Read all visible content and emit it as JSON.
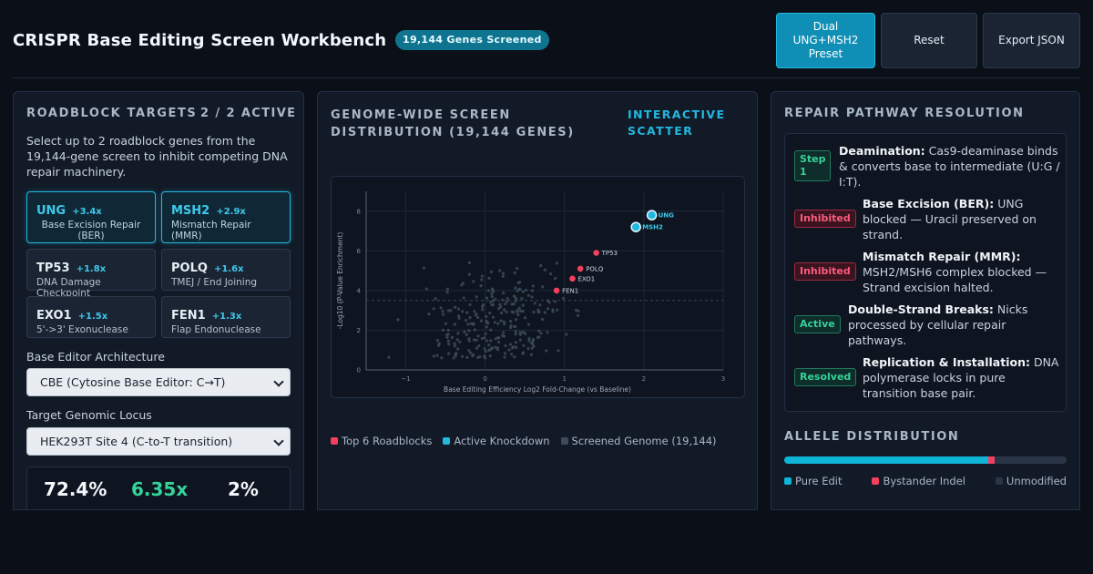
{
  "header": {
    "title": "CRISPR Base Editing Screen Workbench",
    "badge": "19,144 Genes Screened",
    "buttons": {
      "preset": "Dual UNG+MSH2 Preset",
      "reset": "Reset",
      "export": "Export JSON"
    }
  },
  "roadblocks": {
    "title": "Roadblock Targets",
    "active_count": "2 / 2 ACTIVE",
    "intro": "Select up to 2 roadblock genes from the 19,144-gene screen to inhibit competing DNA repair machinery.",
    "genes": [
      {
        "name": "UNG",
        "fold": "+3.4x",
        "desc": "Base Excision Repair (BER)",
        "selected": true
      },
      {
        "name": "MSH2",
        "fold": "+2.9x",
        "desc": "Mismatch Repair (MMR)",
        "selected": true
      },
      {
        "name": "TP53",
        "fold": "+1.8x",
        "desc": "DNA Damage Checkpoint",
        "selected": false
      },
      {
        "name": "POLQ",
        "fold": "+1.6x",
        "desc": "TMEJ / End Joining",
        "selected": false
      },
      {
        "name": "EXO1",
        "fold": "+1.5x",
        "desc": "5'->3' Exonuclease",
        "selected": false
      },
      {
        "name": "FEN1",
        "fold": "+1.3x",
        "desc": "Flap Endonuclease",
        "selected": false
      }
    ],
    "editor_label": "Base Editor Architecture",
    "editor_value": "CBE (Cytosine Base Editor: C→T)",
    "locus_label": "Target Genomic Locus",
    "locus_value": "HEK293T Site 4 (C-to-T transition)",
    "stats": {
      "efficiency": "72.4%",
      "fold": "6.35x",
      "indel": "2%"
    }
  },
  "screen": {
    "title": "Genome-Wide Screen Distribution (19,144 Genes)",
    "tag": "Interactive Scatter",
    "legend": [
      {
        "label": "Top 6 Roadblocks",
        "color": "#f43f5e"
      },
      {
        "label": "Active Knockdown",
        "color": "#22b8e0"
      },
      {
        "label": "Screened Genome (19,144)",
        "color": "#3c4a5c"
      }
    ]
  },
  "chart_data": {
    "type": "scatter",
    "xlabel": "Base Editing Efficiency Log2 Fold-Change (vs Baseline)",
    "ylabel": "-Log10 (P-Value Enrichment)",
    "xlim": [
      -1.5,
      3
    ],
    "ylim": [
      0,
      9
    ],
    "xticks": [
      -1,
      0,
      1,
      2,
      3
    ],
    "yticks": [
      0,
      2,
      4,
      6,
      8
    ],
    "threshold_y": 3.5,
    "grid": true,
    "highlighted": [
      {
        "name": "UNG",
        "x": 2.1,
        "y": 7.8,
        "group": "active"
      },
      {
        "name": "MSH2",
        "x": 1.9,
        "y": 7.2,
        "group": "active"
      },
      {
        "name": "TP53",
        "x": 1.4,
        "y": 5.9,
        "group": "roadblock"
      },
      {
        "name": "POLQ",
        "x": 1.2,
        "y": 5.1,
        "group": "roadblock"
      },
      {
        "name": "EXO1",
        "x": 1.1,
        "y": 4.6,
        "group": "roadblock"
      },
      {
        "name": "FEN1",
        "x": 0.9,
        "y": 4.0,
        "group": "roadblock"
      }
    ],
    "background_points": 260
  },
  "pathway": {
    "title": "Repair Pathway Resolution",
    "steps": [
      {
        "badge": "Step 1",
        "kind": "step",
        "head": "Deamination:",
        "text": "Cas9-deaminase binds & converts base to intermediate (U:G / I:T)."
      },
      {
        "badge": "Inhibited",
        "kind": "inhibited",
        "head": "Base Excision (BER):",
        "text": "UNG blocked — Uracil preserved on strand."
      },
      {
        "badge": "Inhibited",
        "kind": "inhibited",
        "head": "Mismatch Repair (MMR):",
        "text": "MSH2/MSH6 complex blocked — Strand excision halted."
      },
      {
        "badge": "Active",
        "kind": "active",
        "head": "Double-Strand Breaks:",
        "text": "Nicks processed by cellular repair pathways."
      },
      {
        "badge": "Resolved",
        "kind": "resolved",
        "head": "Replication & Installation:",
        "text": "DNA polymerase locks in pure transition base pair."
      }
    ]
  },
  "allele": {
    "title": "Allele Distribution",
    "segments": [
      {
        "label": "Pure Edit",
        "fraction": 0.724,
        "color": "#0fb5d6"
      },
      {
        "label": "Bystander Indel",
        "fraction": 0.02,
        "color": "#f43f5e"
      },
      {
        "label": "Unmodified",
        "fraction": 0.256,
        "color": "#2a3647"
      }
    ]
  }
}
